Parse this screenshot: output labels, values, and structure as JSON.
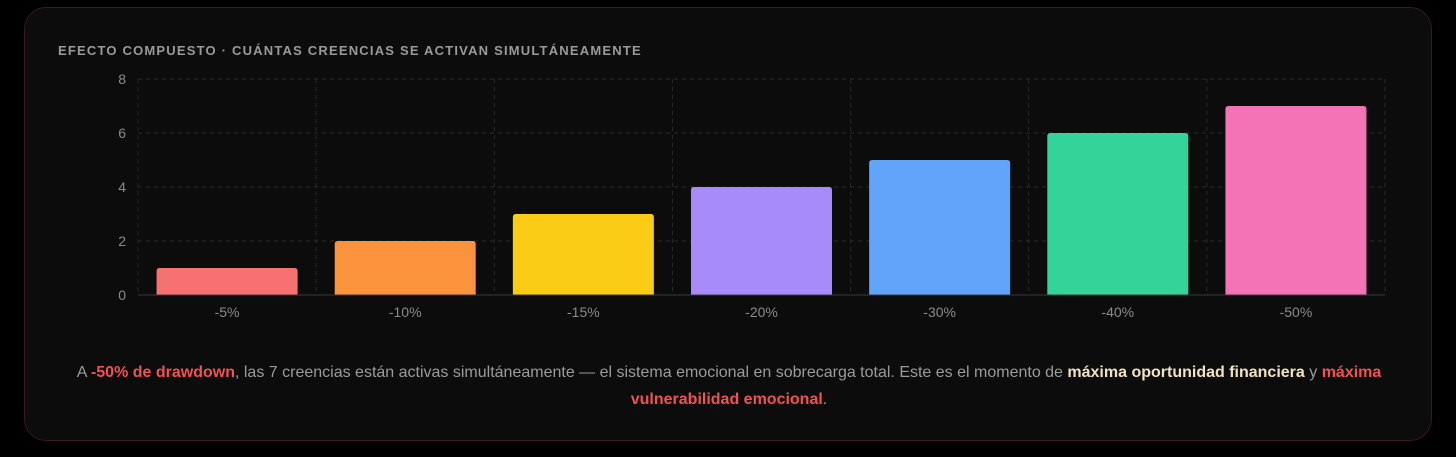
{
  "card": {
    "title": "EFECTO COMPUESTO · CUÁNTAS CREENCIAS SE ACTIVAN SIMULTÁNEAMENTE"
  },
  "chart_data": {
    "type": "bar",
    "categories": [
      "-5%",
      "-10%",
      "-15%",
      "-20%",
      "-30%",
      "-40%",
      "-50%"
    ],
    "values": [
      1,
      2,
      3,
      4,
      5,
      6,
      7
    ],
    "colors": [
      "#f87171",
      "#fb923c",
      "#facc15",
      "#a78bfa",
      "#60a5fa",
      "#34d399",
      "#f472b6"
    ],
    "ylim": [
      0,
      8
    ],
    "yticks": [
      0,
      2,
      4,
      6,
      8
    ],
    "grid": true,
    "title": "",
    "xlabel": "",
    "ylabel": ""
  },
  "caption": {
    "part1": "A ",
    "hl1": "-50% de drawdown",
    "part2": ", las 7 creencias están activas simultáneamente — el sistema emocional en sobrecarga total. Este es el momento de ",
    "hl2": "máxima oportunidad financiera",
    "part3": " y ",
    "hl3": "máxima vulnerabilidad emocional",
    "part4": "."
  },
  "colors": {
    "background": "#0c0c0c",
    "border": "#3a1a1a",
    "highlight_red": "#f05252",
    "highlight_cream": "#f2e2c4"
  }
}
